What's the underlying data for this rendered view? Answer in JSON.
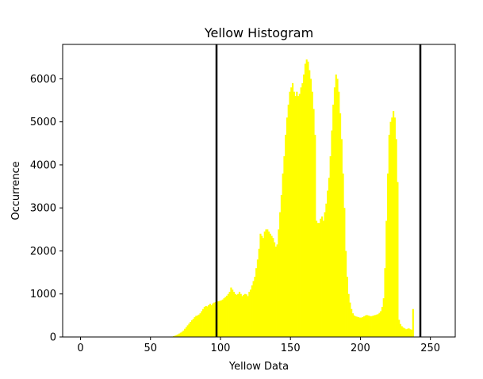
{
  "chart_data": {
    "type": "bar",
    "title": "Yellow Histogram",
    "xlabel": "Yellow Data",
    "ylabel": "Occurrence",
    "xlim": [
      -12.75,
      267.75
    ],
    "ylim": [
      0,
      6800
    ],
    "xticks": [
      0,
      50,
      100,
      150,
      200,
      250
    ],
    "yticks": [
      0,
      1000,
      2000,
      3000,
      4000,
      5000,
      6000
    ],
    "grid": false,
    "bar_color": "#ffff00",
    "bins_start": 0,
    "bin_width": 1,
    "counts": [
      0,
      0,
      0,
      0,
      0,
      0,
      0,
      0,
      0,
      0,
      0,
      0,
      0,
      0,
      0,
      0,
      0,
      0,
      0,
      0,
      0,
      0,
      0,
      0,
      0,
      0,
      0,
      0,
      0,
      0,
      0,
      0,
      0,
      0,
      0,
      0,
      0,
      0,
      0,
      0,
      0,
      0,
      0,
      0,
      0,
      0,
      0,
      0,
      0,
      0,
      0,
      0,
      0,
      0,
      0,
      0,
      0,
      0,
      0,
      0,
      0,
      0,
      0,
      0,
      0,
      10,
      20,
      30,
      45,
      60,
      80,
      100,
      120,
      150,
      190,
      230,
      270,
      310,
      350,
      390,
      420,
      460,
      490,
      500,
      520,
      550,
      600,
      650,
      700,
      720,
      710,
      740,
      770,
      740,
      780,
      800,
      810,
      820,
      830,
      840,
      850,
      870,
      900,
      930,
      960,
      1000,
      1050,
      1150,
      1100,
      1050,
      1000,
      980,
      1000,
      1050,
      1000,
      950,
      980,
      1000,
      990,
      950,
      1050,
      1100,
      1200,
      1300,
      1400,
      1600,
      1800,
      2050,
      2400,
      2350,
      2300,
      2450,
      2500,
      2500,
      2450,
      2400,
      2350,
      2300,
      2200,
      2100,
      2150,
      2500,
      2900,
      3300,
      3800,
      4200,
      4700,
      5100,
      5400,
      5700,
      5800,
      5900,
      5700,
      5600,
      5700,
      5600,
      5650,
      5800,
      5900,
      6100,
      6350,
      6450,
      6400,
      6200,
      6000,
      5700,
      5300,
      4700,
      2700,
      2650,
      2650,
      2750,
      2800,
      2700,
      2900,
      3100,
      3400,
      3700,
      4200,
      4800,
      5400,
      5800,
      6100,
      6000,
      5700,
      5200,
      4600,
      3800,
      3000,
      2000,
      1400,
      1000,
      800,
      650,
      550,
      500,
      480,
      470,
      460,
      450,
      450,
      460,
      480,
      500,
      510,
      500,
      490,
      480,
      490,
      500,
      510,
      520,
      530,
      560,
      600,
      700,
      900,
      1600,
      2700,
      3800,
      4700,
      5000,
      5100,
      5250,
      5100,
      4600,
      3600,
      400,
      300,
      250,
      220,
      200,
      180,
      190,
      200,
      180,
      170,
      650
    ]
  }
}
